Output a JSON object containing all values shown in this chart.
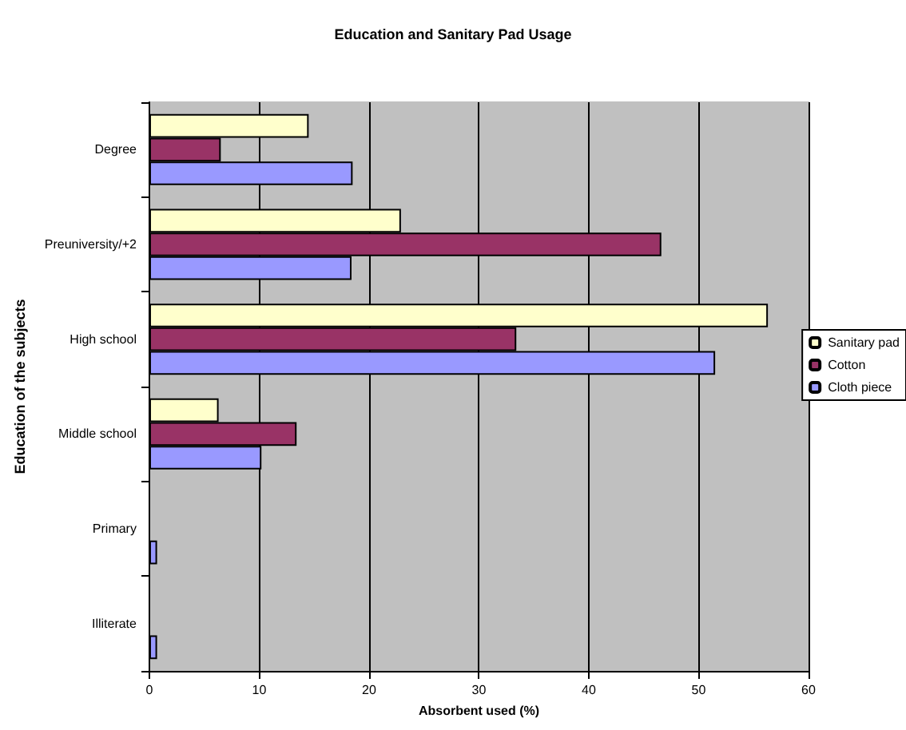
{
  "chart_data": {
    "type": "bar",
    "orientation": "horizontal",
    "title": "Education and Sanitary Pad Usage",
    "xlabel": "Absorbent used (%)",
    "ylabel": "Education of the subjects",
    "categories": [
      "Degree",
      "Preuniversity/+2",
      "High school",
      "Middle school",
      "Primary",
      "Illiterate"
    ],
    "series": [
      {
        "name": "Sanitary pad",
        "color": "#ffffcc",
        "values": [
          14.5,
          22.9,
          56.3,
          6.3,
          null,
          null
        ]
      },
      {
        "name": "Cotton",
        "color": "#993366",
        "values": [
          6.5,
          46.6,
          33.4,
          13.4,
          null,
          null
        ]
      },
      {
        "name": "Cloth piece",
        "color": "#9999ff",
        "values": [
          18.5,
          18.4,
          51.5,
          10.2,
          0.7,
          0.7
        ]
      }
    ],
    "xlim": [
      0,
      60
    ],
    "xticks": [
      0,
      10,
      20,
      30,
      40,
      50,
      60
    ],
    "grid": "x",
    "legend": "right"
  }
}
